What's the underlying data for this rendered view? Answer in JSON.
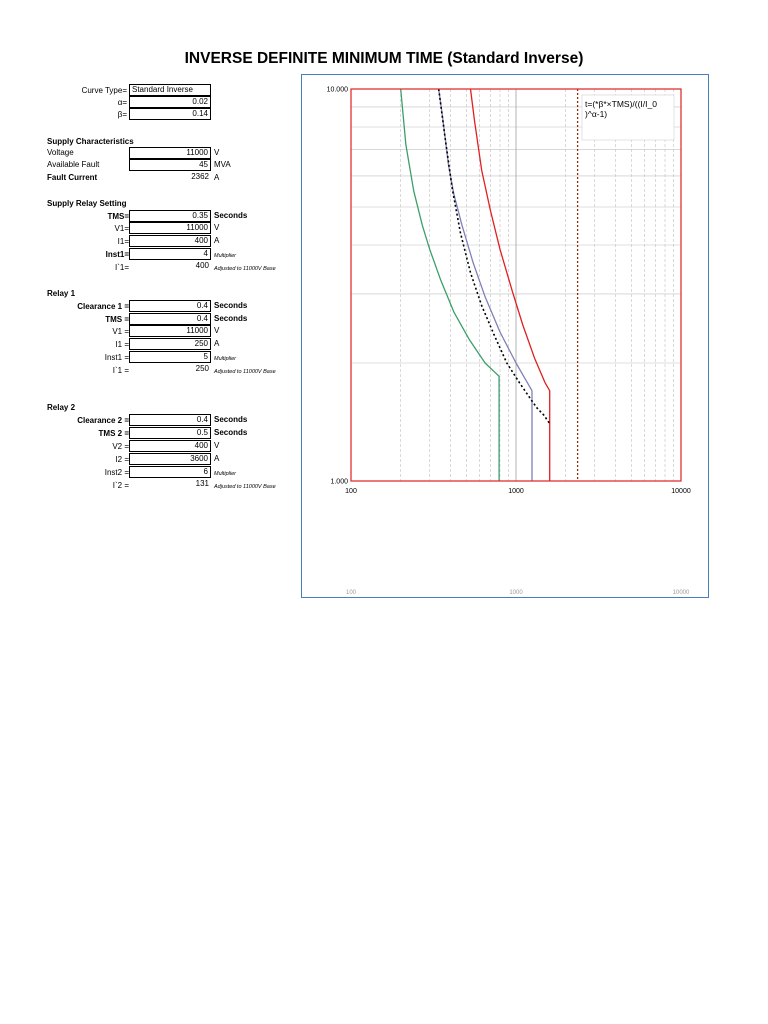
{
  "title": "INVERSE DEFINITE MINIMUM TIME (Standard Inverse)",
  "params": {
    "curve_type_label": "Curve Type=",
    "curve_type_value": "Standard Inverse",
    "alpha_label": "α=",
    "alpha_value": "0.02",
    "beta_label": "β=",
    "beta_value": "0.14"
  },
  "supply": {
    "heading": "Supply Characteristics",
    "voltage_label": "Voltage",
    "voltage_value": "11000",
    "voltage_unit": "V",
    "fault_label": "Available Fault",
    "fault_value": "45",
    "fault_unit": "MVA",
    "current_label": "Fault Current",
    "current_value": "2362",
    "current_unit": "A"
  },
  "supply_relay": {
    "heading": "Supply Relay Setting",
    "tms_label": "TMS=",
    "tms_value": "0.35",
    "tms_unit": "Seconds",
    "v1_label": "V1=",
    "v1_value": "11000",
    "v1_unit": "V",
    "i1_label": "I1=",
    "i1_value": "400",
    "i1_unit": "A",
    "inst1_label": "Inst1=",
    "inst1_value": "4",
    "inst1_unit": "Multiplier",
    "ip1_label": "I`1=",
    "ip1_value": "400",
    "ip1_unit": "Adjusted to 11000V Base"
  },
  "relay1": {
    "heading": "Relay 1",
    "clear_label": "Clearance 1 =",
    "clear_value": "0.4",
    "clear_unit": "Seconds",
    "tms_label": "TMS =",
    "tms_value": "0.4",
    "tms_unit": "Seconds",
    "v_label": "V1 =",
    "v_value": "11000",
    "v_unit": "V",
    "i_label": "I1 =",
    "i_value": "250",
    "i_unit": "A",
    "inst_label": "Inst1 =",
    "inst_value": "5",
    "inst_unit": "Multiplier",
    "ip_label": "I`1 =",
    "ip_value": "250",
    "ip_unit": "Adjusted to 11000V Base"
  },
  "relay2": {
    "heading": "Relay 2",
    "clear_label": "Clearance 2 =",
    "clear_value": "0.4",
    "clear_unit": "Seconds",
    "tms_label": "TMS 2 =",
    "tms_value": "0.5",
    "tms_unit": "Seconds",
    "v_label": "V2 =",
    "v_value": "400",
    "v_unit": "V",
    "i_label": "I2 =",
    "i_value": "3600",
    "i_unit": "A",
    "inst_label": "Inst2 =",
    "inst_value": "6",
    "inst_unit": "Multiplier",
    "ip_label": "I`2 =",
    "ip_value": "131",
    "ip_unit": "Adjusted to 11000V Base"
  },
  "chart_data": {
    "type": "line",
    "x_scale": "log",
    "y_scale": "log",
    "xlim": [
      100,
      10000
    ],
    "ylim": [
      1,
      10
    ],
    "x_ticks": [
      "100",
      "1000",
      "10000"
    ],
    "y_ticks": [
      "1.000",
      "10.000"
    ],
    "formula_text": "t=(*β*×TMS)/((I/I_0)^α-1)",
    "grid": true,
    "colors": {
      "supply": "#e02020",
      "relay1": "#8080b8",
      "relay2": "#3aa06a",
      "dotted": "#000000",
      "fault": "#a0260a",
      "grid": "#c0c0c0",
      "border": "#4a7ebb"
    },
    "series": [
      {
        "key": "supply",
        "style": "solid",
        "x": [
          530,
          560,
          620,
          700,
          800,
          950,
          1100,
          1300,
          1500,
          1600,
          1600
        ],
        "y": [
          10,
          8.3,
          6.2,
          4.9,
          3.9,
          3.05,
          2.5,
          2.05,
          1.78,
          1.7,
          1.0
        ]
      },
      {
        "key": "relay1",
        "style": "solid",
        "x": [
          340,
          360,
          390,
          420,
          470,
          550,
          650,
          800,
          1000,
          1250,
          1250
        ],
        "y": [
          10,
          8.4,
          6.4,
          5.4,
          4.5,
          3.6,
          2.95,
          2.4,
          2.0,
          1.7,
          1.0
        ]
      },
      {
        "key": "relay2",
        "style": "solid",
        "x": [
          200,
          215,
          240,
          270,
          300,
          350,
          420,
          520,
          650,
          790,
          790
        ],
        "y": [
          10,
          7.2,
          5.5,
          4.5,
          3.9,
          3.25,
          2.7,
          2.3,
          2.0,
          1.85,
          1.0
        ]
      },
      {
        "key": "dotted",
        "style": "dotted",
        "x": [
          340,
          370,
          410,
          460,
          530,
          620,
          740,
          880,
          1050,
          1250,
          1350,
          1480,
          1600
        ],
        "y": [
          10,
          7.6,
          5.6,
          4.3,
          3.4,
          2.8,
          2.35,
          2.0,
          1.78,
          1.6,
          1.53,
          1.47,
          1.4
        ]
      },
      {
        "key": "fault",
        "style": "dotted",
        "x": [
          2362,
          2362
        ],
        "y": [
          10,
          1
        ]
      }
    ]
  }
}
